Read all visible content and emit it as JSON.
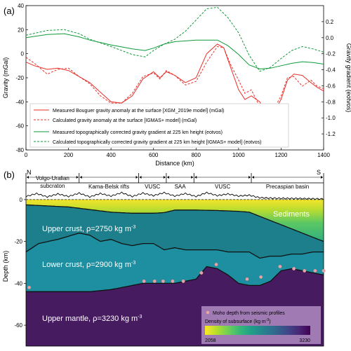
{
  "chart_data": [
    {
      "panel_label": "(a)",
      "type": "line",
      "xlabel": "Distance (km)",
      "ylabel": "Gravity (mGal)",
      "ylabel_right": "Gravity gradient (eotvos)",
      "xlim": [
        0,
        1400
      ],
      "ylim": [
        -80,
        40
      ],
      "ylim_right": [
        -1.4,
        0.4
      ],
      "xticks": [
        0,
        200,
        400,
        600,
        800,
        1000,
        1200,
        1400
      ],
      "yticks": [
        -80,
        -60,
        -40,
        -20,
        0,
        20,
        40
      ],
      "yticks_right": [
        -1.2,
        -1.0,
        -0.8,
        -0.6,
        -0.4,
        -0.2,
        0.0,
        0.2
      ],
      "legend_position": "bottom-left",
      "series": [
        {
          "name": "Measured Bouguer gravity anomaly at the surface [XGM_2019e model] (mGal)",
          "axis": "left",
          "color": "#e8302a",
          "dash": false,
          "x": [
            0,
            40,
            100,
            150,
            200,
            250,
            300,
            350,
            400,
            450,
            500,
            550,
            600,
            630,
            660,
            700,
            750,
            800,
            850,
            900,
            930,
            960,
            1000,
            1030,
            1060,
            1100,
            1130,
            1160,
            1200,
            1230,
            1260,
            1300,
            1340,
            1370,
            1400
          ],
          "y": [
            -7,
            -10,
            -13,
            -12,
            -14,
            -19,
            -24,
            -32,
            -40,
            -41,
            -35,
            -21,
            -15,
            -20,
            -15,
            -18,
            -24,
            -20,
            0,
            8,
            5,
            -10,
            -30,
            -38,
            -35,
            -40,
            -53,
            -50,
            -38,
            -22,
            -17,
            -18,
            -24,
            -28,
            -31
          ]
        },
        {
          "name": "Calculated gravity anomaly at the surface [IGMAS+ model] (mGal)",
          "axis": "left",
          "color": "#e8302a",
          "dash": true,
          "x": [
            0,
            40,
            100,
            150,
            200,
            250,
            300,
            350,
            400,
            450,
            500,
            550,
            600,
            630,
            660,
            700,
            750,
            800,
            850,
            900,
            930,
            960,
            1000,
            1030,
            1060,
            1100,
            1130,
            1160,
            1200,
            1230,
            1260,
            1300,
            1340,
            1370,
            1400
          ],
          "y": [
            -3,
            -8,
            -17,
            -13,
            -12,
            -19,
            -25,
            -35,
            -41,
            -41,
            -33,
            -19,
            -16,
            -21,
            -14,
            -18,
            -26,
            -23,
            -7,
            6,
            5,
            -8,
            -22,
            -33,
            -30,
            -44,
            -55,
            -48,
            -35,
            -20,
            -19,
            -27,
            -22,
            -27,
            -29
          ]
        },
        {
          "name": "Measured topographically corrected gravity gradient at 225 km height (eotvos)",
          "axis": "right",
          "color": "#0f9a3a",
          "dash": false,
          "x": [
            0,
            100,
            180,
            250,
            300,
            400,
            500,
            560,
            600,
            650,
            700,
            800,
            900,
            950,
            1000,
            1050,
            1100,
            1150,
            1200,
            1250,
            1300,
            1350,
            1400
          ],
          "y": [
            0.0,
            0.04,
            0.05,
            0.01,
            -0.03,
            -0.09,
            -0.14,
            -0.16,
            -0.13,
            -0.08,
            -0.05,
            -0.03,
            -0.03,
            -0.1,
            -0.21,
            -0.34,
            -0.39,
            -0.38,
            -0.35,
            -0.32,
            -0.3,
            -0.31,
            -0.33
          ]
        },
        {
          "name": "Calculated topographically corrected gravity gradient at 225 km height [IGMAS+ model] (eotvos)",
          "axis": "right",
          "color": "#0f9a3a",
          "dash": true,
          "x": [
            0,
            100,
            180,
            250,
            300,
            400,
            500,
            560,
            600,
            650,
            700,
            750,
            800,
            850,
            900,
            950,
            1000,
            1050,
            1100,
            1150,
            1200,
            1250,
            1300,
            1350,
            1400
          ],
          "y": [
            0.03,
            0.09,
            0.1,
            0.05,
            -0.02,
            -0.11,
            -0.21,
            -0.24,
            -0.16,
            -0.08,
            -0.02,
            0.08,
            0.22,
            0.36,
            0.38,
            0.25,
            0.06,
            -0.22,
            -0.42,
            -0.37,
            -0.26,
            -0.16,
            -0.11,
            -0.14,
            -0.18
          ]
        }
      ]
    },
    {
      "panel_label": "(b)",
      "type": "area",
      "xlabel": "",
      "ylabel": "Depth (km)",
      "xlim": [
        0,
        1400
      ],
      "ylim": [
        -70,
        8
      ],
      "yticks": [
        0,
        -20,
        -40,
        -60
      ],
      "direction_left": "N",
      "direction_right": "S",
      "provinces": [
        {
          "label": "Volgo-Uralian",
          "label2": "subcraton",
          "x0": 0,
          "x1": 250
        },
        {
          "label": "Kama-Belsk rifts",
          "label2": "",
          "x0": 250,
          "x1": 530
        },
        {
          "label": "VUSC",
          "label2": "",
          "x0": 530,
          "x1": 660
        },
        {
          "label": "SAA",
          "label2": "",
          "x0": 660,
          "x1": 790
        },
        {
          "label": "VUSC",
          "label2": "",
          "x0": 790,
          "x1": 1060
        },
        {
          "label": "Precaspian basin",
          "label2": "",
          "x0": 1060,
          "x1": 1400
        }
      ],
      "topography": {
        "x": [
          0,
          50,
          100,
          150,
          200,
          250,
          300,
          350,
          400,
          450,
          500,
          550,
          600,
          650,
          700,
          750,
          800,
          850,
          900,
          950,
          1000,
          1050,
          1100,
          1150,
          1200,
          1300,
          1400
        ],
        "y": [
          1.2,
          2.6,
          1.0,
          2.4,
          1.2,
          2.8,
          1.0,
          2.6,
          1.4,
          3.0,
          1.2,
          2.8,
          1.6,
          3.0,
          1.4,
          2.6,
          1.2,
          3.0,
          1.6,
          2.4,
          1.4,
          1.8,
          0.6,
          0.4,
          0.3,
          0.2,
          0.0
        ]
      },
      "layers": [
        {
          "name": "Sediments",
          "label": "Sediments",
          "density_gradient": true,
          "base_x": [
            0,
            200,
            400,
            500,
            600,
            650,
            700,
            800,
            900,
            1000,
            1050,
            1100,
            1200,
            1300,
            1400
          ],
          "base_y": [
            -2.5,
            -3.5,
            -6,
            -6.5,
            -6.5,
            -6.2,
            -5,
            -5,
            -5.2,
            -5.6,
            -6,
            -8,
            -12,
            -16,
            -20
          ]
        },
        {
          "name": "Upper crust",
          "label": "Upper crust, ρ=2750 kg m",
          "density": 2750,
          "color": "#1c7f8b",
          "base_x": [
            0,
            60,
            150,
            250,
            300,
            350,
            400,
            450,
            500,
            550,
            600,
            650,
            700,
            750,
            800,
            850,
            900,
            950,
            1000,
            1050,
            1100,
            1150,
            1200,
            1250,
            1300,
            1350,
            1400
          ],
          "base_y": [
            -25,
            -21,
            -19,
            -16,
            -17,
            -20,
            -19,
            -21,
            -22,
            -21,
            -21,
            -24,
            -23,
            -24,
            -24,
            -24,
            -24,
            -25,
            -25,
            -25,
            -28,
            -27,
            -27,
            -26,
            -26,
            -25,
            -25
          ]
        },
        {
          "name": "Lower crust",
          "label": "Lower crust, ρ=2900 kg m",
          "density": 2900,
          "color": "#1e8fa0",
          "base_x": [
            0,
            100,
            200,
            300,
            400,
            450,
            500,
            550,
            600,
            650,
            700,
            750,
            800,
            850,
            900,
            950,
            1000,
            1050,
            1100,
            1150,
            1200,
            1250,
            1300,
            1350,
            1400
          ],
          "base_y": [
            -44,
            -44,
            -44,
            -44,
            -43,
            -42,
            -41,
            -40,
            -40,
            -40,
            -40,
            -39,
            -38,
            -32,
            -33,
            -36,
            -40,
            -41,
            -41,
            -39,
            -34,
            -33,
            -34,
            -35,
            -36
          ]
        },
        {
          "name": "Upper mantle",
          "label": "Upper mantle, ρ=3230 kg m",
          "density": 3230,
          "color": "#461b60",
          "base_x": [],
          "base_y": []
        }
      ],
      "moho_points": {
        "name": "Moho depth from seismic profiles",
        "x": [
          15,
          555,
          605,
          645,
          690,
          740,
          825,
          895,
          1040,
          1105,
          1195,
          1260,
          1310,
          1360,
          1400
        ],
        "y": [
          -42,
          -39,
          -39,
          -39,
          -39,
          -39,
          -35,
          -31,
          -38,
          -37,
          -32,
          -33,
          -34,
          -34,
          -34
        ]
      },
      "colorbar": {
        "label": "Density of subsurface (kg m",
        "min": 2058,
        "max": 3230,
        "stops": [
          "#fde725",
          "#b5de2b",
          "#6ece58",
          "#35b779",
          "#1f9e89",
          "#26828e",
          "#31688e",
          "#3e4989",
          "#482878",
          "#440154"
        ]
      }
    }
  ]
}
